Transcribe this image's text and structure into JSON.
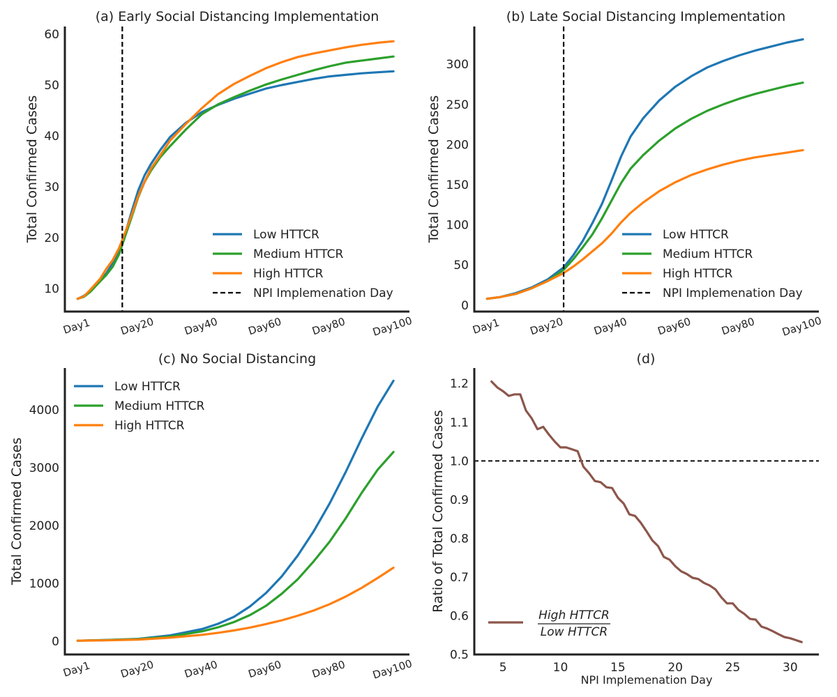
{
  "chart_data": [
    {
      "id": "a",
      "type": "line",
      "title": "(a) Early Social Distancing Implementation",
      "xlabel": "",
      "ylabel": "Total Confirmed Cases",
      "x_tick_labels": [
        "Day1",
        "Day20",
        "Day40",
        "Day60",
        "Day80",
        "Day100"
      ],
      "x_tick_positions": [
        1,
        20,
        40,
        60,
        80,
        100
      ],
      "xlim": [
        -3,
        105
      ],
      "ylim": [
        5.5,
        61.5
      ],
      "y_ticks": [
        10,
        20,
        30,
        40,
        50,
        60
      ],
      "legend_position": "lower-right",
      "series": [
        {
          "name": "Low  HTTCR",
          "color": "#1f77b4",
          "x": [
            1,
            3,
            5,
            8,
            10,
            12,
            14,
            16,
            18,
            20,
            22,
            24,
            27,
            30,
            35,
            40,
            45,
            50,
            55,
            60,
            65,
            70,
            75,
            80,
            85,
            90,
            95,
            100
          ],
          "y": [
            8,
            8.6,
            9.6,
            11.6,
            13.0,
            15.0,
            17.5,
            21.0,
            25.3,
            29.3,
            32.3,
            34.5,
            37.3,
            39.8,
            42.6,
            44.7,
            46.1,
            47.3,
            48.3,
            49.3,
            50.0,
            50.6,
            51.2,
            51.7,
            52.0,
            52.3,
            52.5,
            52.7
          ]
        },
        {
          "name": "Medium  HTTCR",
          "color": "#2ca02c",
          "x": [
            1,
            3,
            5,
            8,
            10,
            12,
            14,
            16,
            18,
            20,
            22,
            24,
            27,
            30,
            35,
            40,
            45,
            50,
            55,
            60,
            65,
            70,
            75,
            80,
            85,
            90,
            95,
            100
          ],
          "y": [
            8,
            8.4,
            9.4,
            11.4,
            12.7,
            14.3,
            16.8,
            20.5,
            24.2,
            28.0,
            31.0,
            33.2,
            35.9,
            38.0,
            41.3,
            44.3,
            46.2,
            47.6,
            48.9,
            50.1,
            51.1,
            52.0,
            52.9,
            53.7,
            54.4,
            54.8,
            55.2,
            55.6
          ]
        },
        {
          "name": "High  HTTCR",
          "color": "#ff7f0e",
          "x": [
            1,
            3,
            5,
            8,
            10,
            12,
            14,
            16,
            18,
            20,
            22,
            24,
            27,
            30,
            35,
            40,
            45,
            50,
            55,
            60,
            65,
            70,
            75,
            80,
            85,
            90,
            95,
            100
          ],
          "y": [
            8,
            8.5,
            9.8,
            11.9,
            13.9,
            15.6,
            18.0,
            21.2,
            24.6,
            28.2,
            31.0,
            33.6,
            36.3,
            39.1,
            42.4,
            45.5,
            48.2,
            50.2,
            51.8,
            53.3,
            54.5,
            55.5,
            56.2,
            56.8,
            57.4,
            57.9,
            58.3,
            58.6
          ]
        },
        {
          "name": "NPI Implemenation Day",
          "color": "#000000",
          "dashed": true,
          "vline": 15
        }
      ]
    },
    {
      "id": "b",
      "type": "line",
      "title": "(b) Late Social Distancing Implementation",
      "xlabel": "",
      "ylabel": "Total Confirmed Cases",
      "x_tick_labels": [
        "Day1",
        "Day20",
        "Day40",
        "Day60",
        "Day80",
        "Day100"
      ],
      "x_tick_positions": [
        1,
        20,
        40,
        60,
        80,
        100
      ],
      "xlim": [
        -3,
        105
      ],
      "ylim": [
        -8,
        347
      ],
      "y_ticks": [
        0,
        50,
        100,
        150,
        200,
        250,
        300
      ],
      "legend_position": "lower-right",
      "series": [
        {
          "name": "Low  HTTCR",
          "color": "#1f77b4",
          "x": [
            1,
            5,
            10,
            15,
            20,
            25,
            28,
            31,
            34,
            37,
            40,
            43,
            46,
            50,
            55,
            60,
            65,
            70,
            75,
            80,
            85,
            90,
            95,
            100
          ],
          "y": [
            8,
            10,
            15,
            22,
            32,
            47,
            62,
            80,
            102,
            126,
            155,
            185,
            210,
            233,
            255,
            272,
            285,
            296,
            304,
            311,
            317,
            322,
            327,
            331
          ]
        },
        {
          "name": "Medium  HTTCR",
          "color": "#2ca02c",
          "x": [
            1,
            5,
            10,
            15,
            20,
            25,
            28,
            31,
            34,
            37,
            40,
            43,
            46,
            50,
            55,
            60,
            65,
            70,
            75,
            80,
            85,
            90,
            95,
            100
          ],
          "y": [
            8,
            10,
            14,
            21,
            30,
            44,
            57,
            72,
            88,
            108,
            130,
            152,
            170,
            187,
            205,
            220,
            232,
            242,
            250,
            257,
            263,
            268,
            273,
            277
          ]
        },
        {
          "name": "High  HTTCR",
          "color": "#ff7f0e",
          "x": [
            1,
            5,
            10,
            15,
            20,
            25,
            28,
            31,
            34,
            37,
            40,
            43,
            46,
            50,
            55,
            60,
            65,
            70,
            75,
            80,
            85,
            90,
            95,
            100
          ],
          "y": [
            8,
            10,
            14,
            21,
            30,
            40,
            48,
            57,
            67,
            77,
            89,
            103,
            115,
            128,
            142,
            153,
            162,
            169,
            175,
            180,
            184,
            187,
            190,
            193
          ]
        },
        {
          "name": "NPI Implemenation Day",
          "color": "#000000",
          "dashed": true,
          "vline": 25
        }
      ]
    },
    {
      "id": "c",
      "type": "line",
      "title": "(c) No Social Distancing",
      "xlabel": "",
      "ylabel": "Total Confirmed Cases",
      "x_tick_labels": [
        "Day1",
        "Day20",
        "Day40",
        "Day60",
        "Day80",
        "Day100"
      ],
      "x_tick_positions": [
        1,
        20,
        40,
        60,
        80,
        100
      ],
      "xlim": [
        -3,
        105
      ],
      "ylim": [
        -230,
        4720
      ],
      "y_ticks": [
        0,
        1000,
        2000,
        3000,
        4000
      ],
      "legend_position": "upper-left",
      "series": [
        {
          "name": "Low  HTTCR",
          "color": "#1f77b4",
          "x": [
            1,
            10,
            20,
            30,
            40,
            45,
            50,
            55,
            60,
            65,
            70,
            75,
            80,
            85,
            90,
            95,
            100
          ],
          "y": [
            8,
            20,
            40,
            100,
            210,
            300,
            420,
            600,
            830,
            1120,
            1480,
            1900,
            2380,
            2920,
            3500,
            4050,
            4500
          ]
        },
        {
          "name": "Medium  HTTCR",
          "color": "#2ca02c",
          "x": [
            1,
            10,
            20,
            30,
            40,
            45,
            50,
            55,
            60,
            65,
            70,
            75,
            80,
            85,
            90,
            95,
            100
          ],
          "y": [
            8,
            18,
            35,
            80,
            170,
            240,
            330,
            450,
            610,
            820,
            1070,
            1380,
            1720,
            2120,
            2560,
            2960,
            3270
          ]
        },
        {
          "name": "High  HTTCR",
          "color": "#ff7f0e",
          "x": [
            1,
            10,
            20,
            30,
            40,
            45,
            50,
            55,
            60,
            65,
            70,
            75,
            80,
            85,
            90,
            95,
            100
          ],
          "y": [
            8,
            15,
            28,
            60,
            110,
            145,
            185,
            235,
            295,
            360,
            440,
            530,
            640,
            770,
            920,
            1090,
            1270
          ]
        }
      ]
    },
    {
      "id": "d",
      "type": "line",
      "title": "(d)",
      "xlabel": "NPI Implemenation Day",
      "ylabel": "Ratio of Total Confirmed Cases",
      "x_ticks": [
        5,
        10,
        15,
        20,
        25,
        30
      ],
      "xlim": [
        2.5,
        32.5
      ],
      "ylim": [
        0.5,
        1.24
      ],
      "y_ticks": [
        0.5,
        0.6,
        0.7,
        0.8,
        0.9,
        1.0,
        1.1,
        1.2
      ],
      "y_tick_labels": [
        "0.5",
        "0.6",
        "0.7",
        "0.8",
        "0.9",
        "1.0",
        "1.1",
        "1.2"
      ],
      "reference_line": {
        "y": 1.0,
        "dashed": true,
        "color": "#000000"
      },
      "legend_position": "lower-left",
      "legend_numerator": "High HTTCR",
      "legend_denominator": "Low HTTCR",
      "series": [
        {
          "name": "",
          "color": "#8c564b",
          "x": [
            4,
            4.5,
            5,
            5.5,
            6,
            6.5,
            7,
            7.5,
            8,
            8.5,
            9,
            9.5,
            10,
            10.5,
            11,
            11.5,
            12,
            12.5,
            13,
            13.5,
            14,
            14.5,
            15,
            15.5,
            16,
            16.5,
            17,
            17.5,
            18,
            18.5,
            19,
            19.5,
            20,
            20.5,
            21,
            21.5,
            22,
            22.5,
            23,
            23.5,
            24,
            24.5,
            25,
            25.5,
            26,
            26.5,
            27,
            27.5,
            28,
            28.5,
            29,
            29.5,
            30,
            30.5,
            31
          ],
          "y": [
            1.205,
            1.19,
            1.18,
            1.168,
            1.172,
            1.172,
            1.13,
            1.11,
            1.082,
            1.088,
            1.068,
            1.05,
            1.035,
            1.035,
            1.03,
            1.025,
            0.985,
            0.968,
            0.948,
            0.945,
            0.932,
            0.93,
            0.905,
            0.89,
            0.862,
            0.858,
            0.84,
            0.818,
            0.795,
            0.78,
            0.752,
            0.745,
            0.728,
            0.715,
            0.708,
            0.698,
            0.695,
            0.685,
            0.678,
            0.668,
            0.648,
            0.632,
            0.632,
            0.615,
            0.605,
            0.592,
            0.59,
            0.572,
            0.567,
            0.56,
            0.552,
            0.545,
            0.542,
            0.537,
            0.532
          ]
        }
      ]
    }
  ]
}
